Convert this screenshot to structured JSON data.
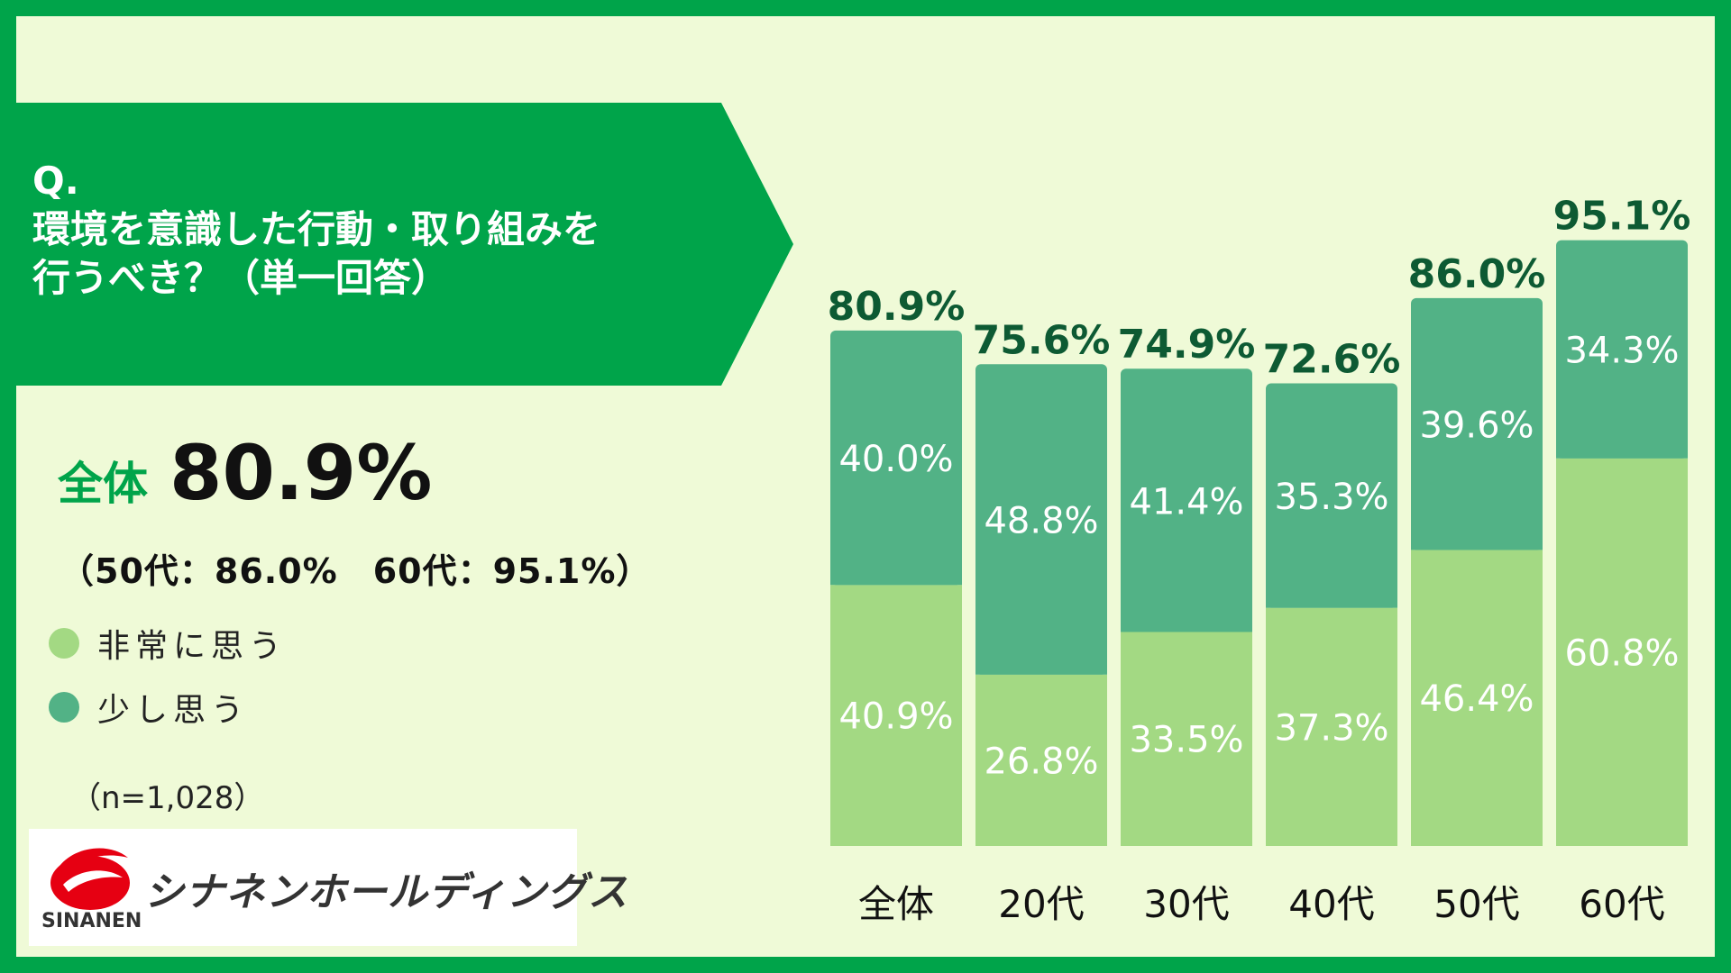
{
  "question": {
    "prefix": "Q.",
    "line1": "環境を意識した行動・取り組みを",
    "line2": "行うべき？（単一回答）"
  },
  "summary": {
    "label": "全体",
    "value": "80.9%",
    "sub": "（50代：86.0%　60代：95.1%）"
  },
  "legend": [
    {
      "label": "非常に思う",
      "color": "#a3d983"
    },
    {
      "label": "少し思う",
      "color": "#52b286"
    }
  ],
  "sample": "（n=1,028）",
  "logo": {
    "name": "シナネンホールディングス",
    "sub": "SINANEN"
  },
  "chart_data": {
    "type": "bar",
    "stacked": true,
    "categories": [
      "全体",
      "20代",
      "30代",
      "40代",
      "50代",
      "60代"
    ],
    "series": [
      {
        "name": "非常に思う",
        "values": [
          40.9,
          26.8,
          33.5,
          37.3,
          46.4,
          60.8
        ],
        "labels": [
          "40.9%",
          "26.8%",
          "33.5%",
          "37.3%",
          "46.4%",
          "60.8%"
        ],
        "color": "#a3d983"
      },
      {
        "name": "少し思う",
        "values": [
          40.0,
          48.8,
          41.4,
          35.3,
          39.6,
          34.3
        ],
        "labels": [
          "40.0%",
          "48.8%",
          "41.4%",
          "35.3%",
          "39.6%",
          "34.3%"
        ],
        "color": "#52b286"
      }
    ],
    "totals": [
      80.9,
      75.6,
      74.9,
      72.6,
      86.0,
      95.1
    ],
    "total_labels": [
      "80.9%",
      "75.6%",
      "74.9%",
      "72.6%",
      "86.0%",
      "95.1%"
    ],
    "ylim": [
      0,
      100
    ],
    "grid": false
  }
}
